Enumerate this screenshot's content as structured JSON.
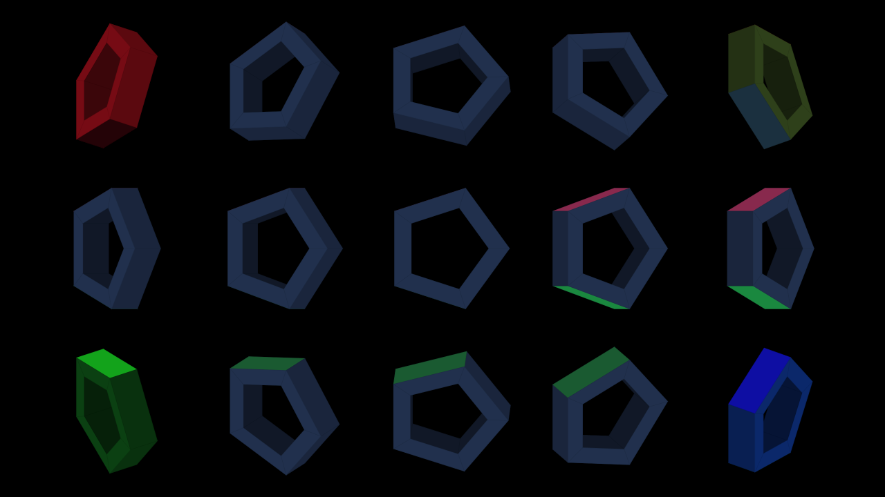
{
  "scene": {
    "background": "#000000",
    "base_color": "#1e2c46",
    "edge_colors": {
      "red": "#c8203a",
      "green": "#1fa04a",
      "blue": "#1b2bd0",
      "magenta": "#a0305a"
    },
    "rings": [
      {
        "row": 0,
        "col": 0,
        "yaw": -62,
        "pitch": 38,
        "roll": 0,
        "tint": "#6b0a12",
        "accent": "#d00f15",
        "second": "#2a0408"
      },
      {
        "row": 0,
        "col": 1,
        "yaw": -38,
        "pitch": 30,
        "roll": 0,
        "tint": "#1e2c46",
        "accent": "#7a2c4a",
        "second": "#1e2c46"
      },
      {
        "row": 0,
        "col": 2,
        "yaw": -4,
        "pitch": 30,
        "roll": 0,
        "tint": "#1e2c46",
        "accent": "#6a2440",
        "second": "#1e2c46"
      },
      {
        "row": 0,
        "col": 3,
        "yaw": 30,
        "pitch": 30,
        "roll": 0,
        "tint": "#1e2c46",
        "accent": "#7a2c4a",
        "second": "#1e2c46"
      },
      {
        "row": 0,
        "col": 4,
        "yaw": 60,
        "pitch": 38,
        "roll": 0,
        "tint": "#2a3a18",
        "accent": "#c24010",
        "second": "#20384a"
      },
      {
        "row": 1,
        "col": 0,
        "yaw": -58,
        "pitch": 0,
        "roll": 0,
        "tint": "#1e2c46",
        "accent": "#a0305a",
        "second": "#1fa04a"
      },
      {
        "row": 1,
        "col": 1,
        "yaw": -30,
        "pitch": 0,
        "roll": 0,
        "tint": "#1e2c46",
        "accent": "#a0305a",
        "second": "#1fa04a"
      },
      {
        "row": 1,
        "col": 2,
        "yaw": 0,
        "pitch": 0,
        "roll": 0,
        "tint": "#1e2c46",
        "accent": "#a0305a",
        "second": "#1fa04a"
      },
      {
        "row": 1,
        "col": 3,
        "yaw": 30,
        "pitch": 0,
        "roll": 0,
        "tint": "#1e2c46",
        "accent": "#a0305a",
        "second": "#1fa04a"
      },
      {
        "row": 1,
        "col": 4,
        "yaw": 58,
        "pitch": 0,
        "roll": 0,
        "tint": "#1e2c46",
        "accent": "#a0305a",
        "second": "#1fa04a"
      },
      {
        "row": 2,
        "col": 0,
        "yaw": -62,
        "pitch": -38,
        "roll": 0,
        "tint": "#0a3a10",
        "accent": "#16c020",
        "second": "#083010"
      },
      {
        "row": 2,
        "col": 1,
        "yaw": -38,
        "pitch": -30,
        "roll": 0,
        "tint": "#1e2c46",
        "accent": "#1f6a3a",
        "second": "#1e2c46"
      },
      {
        "row": 2,
        "col": 2,
        "yaw": -4,
        "pitch": -30,
        "roll": 0,
        "tint": "#1e2c46",
        "accent": "#1f6a3a",
        "second": "#1e2c46"
      },
      {
        "row": 2,
        "col": 3,
        "yaw": 30,
        "pitch": -30,
        "roll": 0,
        "tint": "#1e2c46",
        "accent": "#1f6a3a",
        "second": "#1e2c46"
      },
      {
        "row": 2,
        "col": 4,
        "yaw": 60,
        "pitch": -38,
        "roll": 0,
        "tint": "#0a2460",
        "accent": "#1010c0",
        "second": "#0a5a3a"
      }
    ]
  }
}
